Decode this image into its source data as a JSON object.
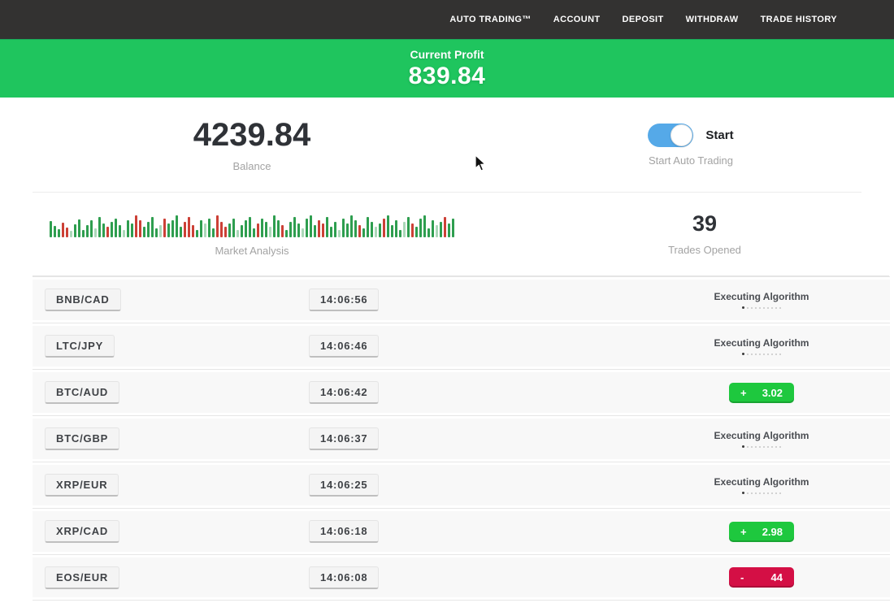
{
  "nav": {
    "items": [
      {
        "label": "AUTO TRADING™"
      },
      {
        "label": "ACCOUNT"
      },
      {
        "label": "DEPOSIT"
      },
      {
        "label": "WITHDRAW"
      },
      {
        "label": "TRADE HISTORY"
      }
    ]
  },
  "profit_banner": {
    "label": "Current Profit",
    "value": "839.84"
  },
  "stats": {
    "balance": {
      "value": "4239.84",
      "label": "Balance"
    },
    "auto_trading": {
      "toggle_label": "Start",
      "label": "Start Auto Trading",
      "enabled": true
    },
    "market_analysis": {
      "label": "Market Analysis"
    },
    "trades_opened": {
      "value": "39",
      "label": "Trades Opened"
    }
  },
  "trades": [
    {
      "pair": "BNB/CAD",
      "time": "14:06:56",
      "status": "executing",
      "status_label": "Executing Algorithm"
    },
    {
      "pair": "LTC/JPY",
      "time": "14:06:46",
      "status": "executing",
      "status_label": "Executing Algorithm"
    },
    {
      "pair": "BTC/AUD",
      "time": "14:06:42",
      "status": "profit",
      "sign": "+",
      "value": "3.02"
    },
    {
      "pair": "BTC/GBP",
      "time": "14:06:37",
      "status": "executing",
      "status_label": "Executing Algorithm"
    },
    {
      "pair": "XRP/EUR",
      "time": "14:06:25",
      "status": "executing",
      "status_label": "Executing Algorithm"
    },
    {
      "pair": "XRP/CAD",
      "time": "14:06:18",
      "status": "profit",
      "sign": "+",
      "value": "2.98"
    },
    {
      "pair": "EOS/EUR",
      "time": "14:06:08",
      "status": "loss",
      "sign": "-",
      "value": "44"
    }
  ],
  "ui": {
    "executing_dots": 10
  },
  "colors": {
    "nav_bg": "#333231",
    "banner_green": "#1fc55e",
    "badge_green": "#1ec83e",
    "badge_red": "#d40f45",
    "toggle_blue": "#55a9e8",
    "bar_green": "#2e9e4f",
    "bar_red": "#cc4036"
  },
  "chart_data": {
    "type": "bar",
    "title": "Market Analysis",
    "note": "sparkline strip; pairs are [height_px, color] where g=green, r=red, uppercase=faded",
    "bars": [
      [
        20,
        "g"
      ],
      [
        14,
        "g"
      ],
      [
        10,
        "g"
      ],
      [
        18,
        "r"
      ],
      [
        12,
        "r"
      ],
      [
        8,
        "G"
      ],
      [
        16,
        "g"
      ],
      [
        22,
        "g"
      ],
      [
        9,
        "g"
      ],
      [
        15,
        "g"
      ],
      [
        21,
        "g"
      ],
      [
        11,
        "G"
      ],
      [
        25,
        "g"
      ],
      [
        17,
        "g"
      ],
      [
        13,
        "r"
      ],
      [
        19,
        "g"
      ],
      [
        23,
        "g"
      ],
      [
        15,
        "g"
      ],
      [
        9,
        "G"
      ],
      [
        21,
        "g"
      ],
      [
        17,
        "g"
      ],
      [
        27,
        "r"
      ],
      [
        21,
        "r"
      ],
      [
        13,
        "g"
      ],
      [
        19,
        "g"
      ],
      [
        25,
        "g"
      ],
      [
        11,
        "g"
      ],
      [
        15,
        "G"
      ],
      [
        23,
        "r"
      ],
      [
        17,
        "g"
      ],
      [
        21,
        "g"
      ],
      [
        27,
        "g"
      ],
      [
        13,
        "g"
      ],
      [
        19,
        "r"
      ],
      [
        25,
        "r"
      ],
      [
        15,
        "r"
      ],
      [
        9,
        "g"
      ],
      [
        21,
        "g"
      ],
      [
        17,
        "G"
      ],
      [
        23,
        "g"
      ],
      [
        11,
        "g"
      ],
      [
        27,
        "r"
      ],
      [
        19,
        "r"
      ],
      [
        13,
        "r"
      ],
      [
        17,
        "g"
      ],
      [
        23,
        "g"
      ],
      [
        9,
        "G"
      ],
      [
        15,
        "g"
      ],
      [
        21,
        "g"
      ],
      [
        25,
        "g"
      ],
      [
        11,
        "g"
      ],
      [
        17,
        "r"
      ],
      [
        23,
        "g"
      ],
      [
        19,
        "g"
      ],
      [
        13,
        "G"
      ],
      [
        27,
        "g"
      ],
      [
        21,
        "g"
      ],
      [
        15,
        "r"
      ],
      [
        9,
        "g"
      ],
      [
        19,
        "g"
      ],
      [
        25,
        "g"
      ],
      [
        17,
        "g"
      ],
      [
        11,
        "G"
      ],
      [
        23,
        "g"
      ],
      [
        27,
        "g"
      ],
      [
        15,
        "g"
      ],
      [
        21,
        "r"
      ],
      [
        17,
        "r"
      ],
      [
        25,
        "g"
      ],
      [
        13,
        "g"
      ],
      [
        19,
        "g"
      ],
      [
        9,
        "G"
      ],
      [
        23,
        "g"
      ],
      [
        17,
        "g"
      ],
      [
        27,
        "g"
      ],
      [
        21,
        "g"
      ],
      [
        15,
        "r"
      ],
      [
        11,
        "g"
      ],
      [
        25,
        "g"
      ],
      [
        19,
        "g"
      ],
      [
        13,
        "G"
      ],
      [
        17,
        "g"
      ],
      [
        23,
        "r"
      ],
      [
        27,
        "g"
      ],
      [
        15,
        "g"
      ],
      [
        21,
        "g"
      ],
      [
        9,
        "g"
      ],
      [
        19,
        "G"
      ],
      [
        25,
        "g"
      ],
      [
        17,
        "r"
      ],
      [
        13,
        "g"
      ],
      [
        23,
        "g"
      ],
      [
        27,
        "g"
      ],
      [
        11,
        "g"
      ],
      [
        21,
        "g"
      ],
      [
        15,
        "G"
      ],
      [
        19,
        "g"
      ],
      [
        25,
        "r"
      ],
      [
        17,
        "g"
      ],
      [
        23,
        "g"
      ]
    ]
  }
}
